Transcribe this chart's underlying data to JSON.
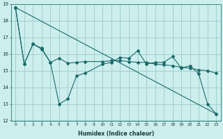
{
  "xlabel": "Humidex (Indice chaleur)",
  "bg_color": "#cceeed",
  "line_color": "#1a6b6b",
  "grid_color": "#99ccca",
  "xlim": [
    -0.5,
    23.5
  ],
  "ylim": [
    12,
    19
  ],
  "yticks": [
    12,
    13,
    14,
    15,
    16,
    17,
    18,
    19
  ],
  "xticks": [
    0,
    1,
    2,
    3,
    4,
    5,
    6,
    7,
    8,
    9,
    10,
    11,
    12,
    13,
    14,
    15,
    16,
    17,
    18,
    19,
    20,
    21,
    22,
    23
  ],
  "line1_x": [
    0,
    1,
    2,
    3,
    4,
    5,
    6,
    7,
    8,
    10,
    11,
    12,
    13,
    14,
    15,
    16,
    17,
    18,
    19,
    20,
    21,
    22,
    23
  ],
  "line1_y": [
    18.8,
    15.4,
    16.6,
    16.3,
    15.5,
    13.0,
    13.3,
    14.7,
    14.85,
    15.4,
    15.5,
    15.8,
    15.75,
    16.2,
    15.4,
    15.5,
    15.5,
    15.85,
    15.15,
    15.3,
    14.8,
    13.0,
    12.4
  ],
  "line2_x": [
    0,
    1,
    2,
    3,
    4,
    5,
    6,
    7,
    8,
    10,
    11,
    12,
    13,
    14,
    15,
    16,
    17,
    18,
    19,
    20,
    21,
    22,
    23
  ],
  "line2_y": [
    18.8,
    15.4,
    16.6,
    16.35,
    15.5,
    15.75,
    15.45,
    15.5,
    15.55,
    15.55,
    15.6,
    15.6,
    15.55,
    15.5,
    15.5,
    15.4,
    15.35,
    15.3,
    15.2,
    15.15,
    15.05,
    15.0,
    14.85
  ]
}
